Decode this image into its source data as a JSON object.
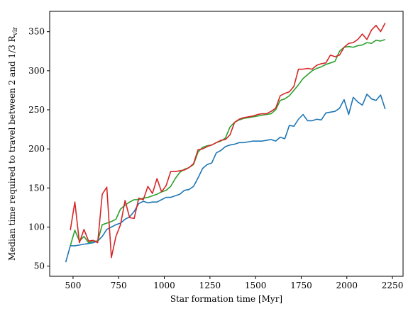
{
  "chart_data": {
    "type": "line",
    "xlabel": "Star formation time [Myr]",
    "ylabel": {
      "text": "Median time required to travel between 2 and 1/3 R",
      "subscript": "vir"
    },
    "x": [
      460,
      485,
      510,
      535,
      560,
      585,
      610,
      635,
      660,
      685,
      710,
      735,
      760,
      785,
      810,
      835,
      860,
      885,
      910,
      935,
      960,
      985,
      1010,
      1035,
      1060,
      1085,
      1110,
      1135,
      1160,
      1185,
      1210,
      1235,
      1260,
      1285,
      1310,
      1335,
      1360,
      1385,
      1410,
      1435,
      1460,
      1485,
      1510,
      1535,
      1560,
      1585,
      1610,
      1635,
      1660,
      1685,
      1710,
      1735,
      1760,
      1785,
      1810,
      1835,
      1860,
      1885,
      1910,
      1935,
      1960,
      1985,
      2010,
      2035,
      2060,
      2085,
      2110,
      2135,
      2160,
      2185,
      2210
    ],
    "series": [
      {
        "color": "#1f77b4",
        "values": [
          55,
          76,
          76,
          77,
          78,
          79,
          80,
          82,
          88,
          97,
          100,
          103,
          105,
          110,
          113,
          120,
          130,
          133,
          131,
          132,
          132,
          135,
          138,
          138,
          140,
          142,
          147,
          148,
          152,
          163,
          175,
          180,
          182,
          195,
          198,
          203,
          205,
          206,
          208,
          208,
          209,
          210,
          210,
          210,
          211,
          212,
          210,
          215,
          213,
          230,
          229,
          238,
          244,
          236,
          236,
          238,
          237,
          246,
          247,
          248,
          252,
          263,
          244,
          266,
          260,
          256,
          270,
          264,
          262,
          269,
          251
        ]
      },
      {
        "color": "#2ca02c",
        "values": [
          null,
          76,
          96,
          82,
          88,
          80,
          82,
          82,
          103,
          105,
          107,
          110,
          123,
          128,
          132,
          135,
          135,
          137,
          138,
          140,
          142,
          145,
          147,
          152,
          162,
          170,
          174,
          176,
          180,
          196,
          202,
          204,
          205,
          208,
          210,
          214,
          228,
          234,
          237,
          239,
          240,
          241,
          242,
          243,
          244,
          245,
          250,
          262,
          264,
          268,
          275,
          282,
          290,
          295,
          300,
          303,
          305,
          308,
          310,
          312,
          325,
          330,
          331,
          330,
          332,
          333,
          336,
          335,
          339,
          338,
          340
        ]
      },
      {
        "color": "#d62728",
        "values": [
          null,
          96,
          132,
          80,
          97,
          82,
          83,
          80,
          142,
          151,
          61,
          88,
          103,
          134,
          112,
          111,
          137,
          135,
          152,
          143,
          162,
          145,
          153,
          171,
          171,
          172,
          173,
          176,
          181,
          199,
          200,
          203,
          205,
          208,
          211,
          212,
          218,
          234,
          238,
          240,
          241,
          242,
          244,
          245,
          245,
          248,
          252,
          268,
          271,
          273,
          280,
          302,
          302,
          303,
          302,
          307,
          309,
          310,
          320,
          318,
          320,
          330,
          335,
          336,
          340,
          347,
          340,
          352,
          358,
          350,
          361
        ]
      }
    ],
    "xlim": [
      372,
      2308
    ],
    "xticks": [
      500,
      750,
      1000,
      1250,
      1500,
      1750,
      2000,
      2250
    ],
    "ylim": [
      37,
      376
    ],
    "yticks": [
      50,
      100,
      150,
      200,
      250,
      300,
      350
    ],
    "grid": false
  }
}
